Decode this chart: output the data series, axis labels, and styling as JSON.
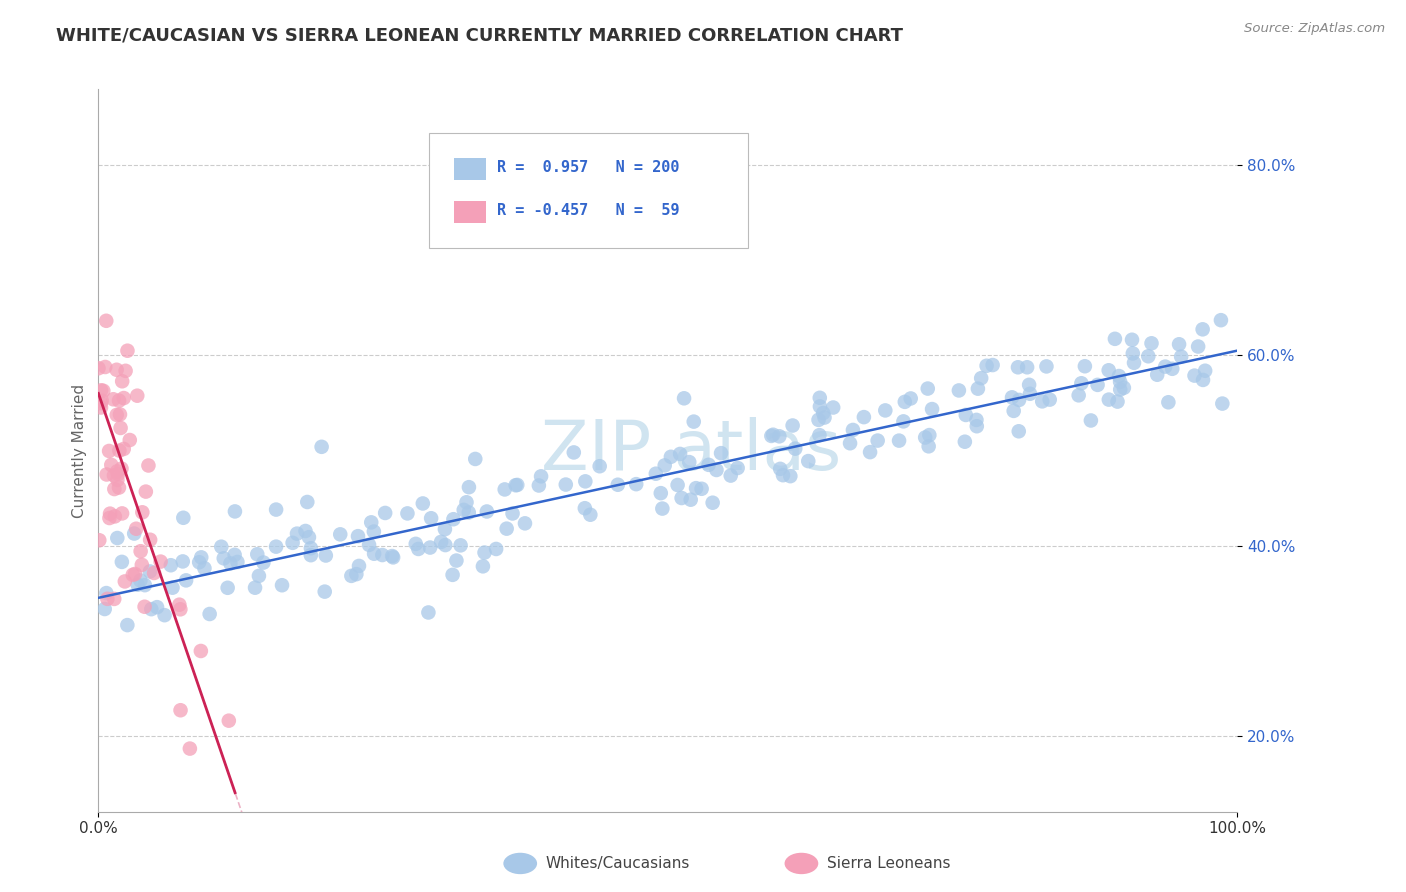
{
  "title": "WHITE/CAUCASIAN VS SIERRA LEONEAN CURRENTLY MARRIED CORRELATION CHART",
  "source": "Source: ZipAtlas.com",
  "ylabel": "Currently Married",
  "blue_R": 0.957,
  "blue_N": 200,
  "pink_R": -0.457,
  "pink_N": 59,
  "blue_color": "#a8c8e8",
  "blue_line_color": "#3366cc",
  "pink_color": "#f4a0b8",
  "pink_line_color": "#cc2255",
  "pink_dash_color": "#e080a0",
  "watermark_color": "#d0e4f0",
  "legend_label_blue": "Whites/Caucasians",
  "legend_label_pink": "Sierra Leoneans",
  "ylim": [
    0.12,
    0.88
  ],
  "yticks": [
    0.2,
    0.4,
    0.6,
    0.8
  ],
  "ytick_labels": [
    "20.0%",
    "40.0%",
    "60.0%",
    "80.0%"
  ],
  "background_color": "#ffffff",
  "grid_color": "#cccccc",
  "title_color": "#333333",
  "axis_label_color": "#666666",
  "blue_intercept": 0.345,
  "blue_slope": 0.0026,
  "pink_intercept": 0.56,
  "pink_slope": -0.035,
  "blue_noise": 0.028,
  "pink_noise": 0.07
}
